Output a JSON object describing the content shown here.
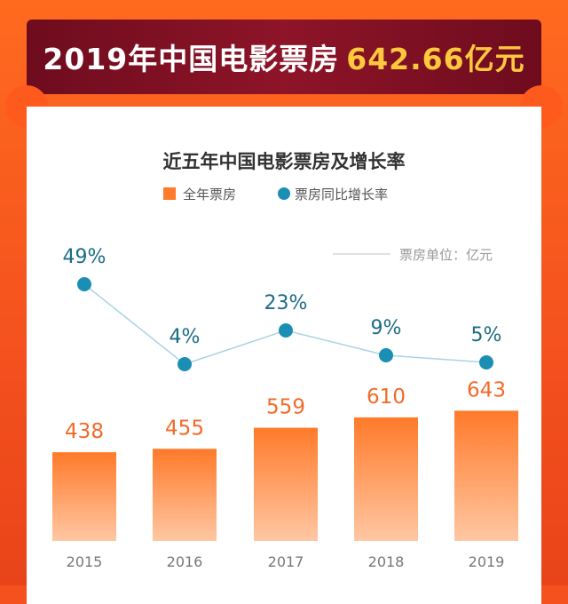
{
  "banner": {
    "title_text": "2019年中国电影票房",
    "title_highlight": "642.66亿元"
  },
  "chart_data": {
    "type": "bar",
    "title": "近五年中国电影票房及增长率",
    "unit_note": "票房单位：亿元",
    "categories": [
      "2015",
      "2016",
      "2017",
      "2018",
      "2019"
    ],
    "series": [
      {
        "name": "全年票房",
        "type": "bar",
        "values": [
          438,
          455,
          559,
          610,
          643
        ],
        "labels": [
          "438",
          "455",
          "559",
          "610",
          "643"
        ],
        "color": "#ff7a2a"
      },
      {
        "name": "票房同比增长率",
        "type": "line",
        "values": [
          49,
          4,
          23,
          9,
          5
        ],
        "labels": [
          "49%",
          "4%",
          "23%",
          "9%",
          "5%"
        ],
        "color": "#1a8fb3"
      }
    ],
    "legend_position": "top-center",
    "grid": false
  },
  "colors": {
    "banner_bg": "#7a0f22",
    "highlight": "#ffc83d",
    "bar_top": "#ff7a2a",
    "bar_bottom": "#ffc7a3",
    "line": "#1a8fb3",
    "line_stroke": "#a7d4e4",
    "bar_label": "#f26a2a",
    "rate_label": "#1c6c86"
  }
}
